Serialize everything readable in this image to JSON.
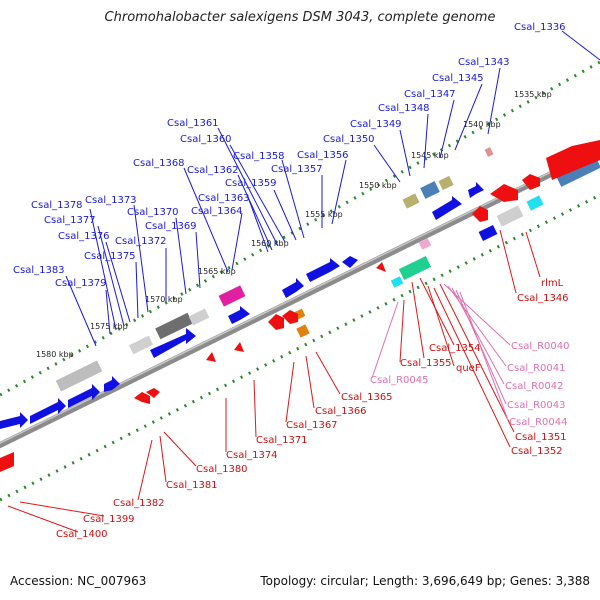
{
  "title": "Chromohalobacter salexigens DSM 3043, complete genome",
  "footer": {
    "accession": "Accession: NC_007963",
    "summary": "Topology: circular; Length: 3,696,649 bp; Genes: 3,388"
  },
  "colors": {
    "forward_gene": "#1010e0",
    "reverse_gene": "#ee1010",
    "rna_label": "#e070b0",
    "backbone": "#888888",
    "tick_major": "#2a8a2a",
    "tick_minor": "#1f7a1f"
  },
  "scale_labels": [
    "1535 kbp",
    "1540 kbp",
    "1545 kbp",
    "1550 kbp",
    "1555 kbp",
    "1560 kbp",
    "1565 kbp",
    "1570 kbp",
    "1575 kbp",
    "1580 kbp"
  ],
  "upper_labels": [
    "Csal_1336",
    "Csal_1343",
    "Csal_1345",
    "Csal_1347",
    "Csal_1348",
    "Csal_1349",
    "Csal_1350",
    "Csal_1356",
    "Csal_1357",
    "Csal_1358",
    "Csal_1359",
    "Csal_1360",
    "Csal_1361",
    "Csal_1362",
    "Csal_1363",
    "Csal_1364",
    "Csal_1368",
    "Csal_1369",
    "Csal_1370",
    "Csal_1372",
    "Csal_1373",
    "Csal_1375",
    "Csal_1376",
    "Csal_1377",
    "Csal_1378",
    "Csal_1379",
    "Csal_1383"
  ],
  "lower_red_labels": [
    "rlmL",
    "Csal_1346",
    "Csal_1354",
    "Csal_1355",
    "queF",
    "Csal_1351",
    "Csal_1352",
    "Csal_1365",
    "Csal_1366",
    "Csal_1367",
    "Csal_1371",
    "Csal_1374",
    "Csal_1380",
    "Csal_1381",
    "Csal_1382",
    "Csal_1399",
    "Csal_1400"
  ],
  "lower_pink_labels": [
    "Csal_R0040",
    "Csal_R0041",
    "Csal_R0042",
    "Csal_R0043",
    "Csal_R0044",
    "Csal_R0045"
  ]
}
